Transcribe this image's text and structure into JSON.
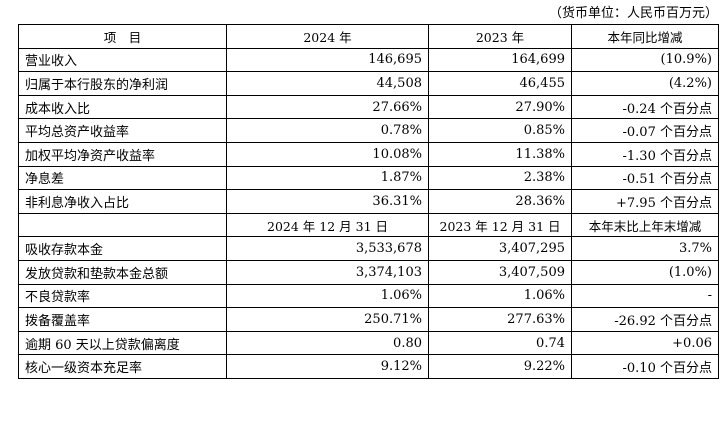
{
  "unit_note": "（货币单位：人民币百万元）",
  "header1": [
    "项　目",
    "2024 年",
    "2023 年",
    "本年同比增减"
  ],
  "rows1": [
    {
      "label": "营业收入",
      "v2024": "146,695",
      "v2023": "164,699",
      "change": "(10.9%)"
    },
    {
      "label": "归属于本行股东的净利润",
      "v2024": "44,508",
      "v2023": "46,455",
      "change": "(4.2%)"
    },
    {
      "label": "成本收入比",
      "v2024": "27.66%",
      "v2023": "27.90%",
      "change": "-0.24 个百分点"
    },
    {
      "label": "平均总资产收益率",
      "v2024": "0.78%",
      "v2023": "0.85%",
      "change": "-0.07 个百分点"
    },
    {
      "label": "加权平均净资产收益率",
      "v2024": "10.08%",
      "v2023": "11.38%",
      "change": "-1.30 个百分点"
    },
    {
      "label": "净息差",
      "v2024": "1.87%",
      "v2023": "2.38%",
      "change": "-0.51 个百分点"
    },
    {
      "label": "非利息净收入占比",
      "v2024": "36.31%",
      "v2023": "28.36%",
      "change": "+7.95 个百分点"
    }
  ],
  "header2": [
    "",
    "2024 年 12 月 31 日",
    "2023 年 12 月 31 日",
    "本年末比上年末增减"
  ],
  "rows2": [
    {
      "label": "吸收存款本金",
      "v2024": "3,533,678",
      "v2023": "3,407,295",
      "change": "3.7%"
    },
    {
      "label": "发放贷款和垫款本金总额",
      "v2024": "3,374,103",
      "v2023": "3,407,509",
      "change": "(1.0%)"
    },
    {
      "label": "不良贷款率",
      "v2024": "1.06%",
      "v2023": "1.06%",
      "change": "-"
    },
    {
      "label": "拨备覆盖率",
      "v2024": "250.71%",
      "v2023": "277.63%",
      "change": "-26.92 个百分点"
    },
    {
      "label": "逾期 60 天以上贷款偏离度",
      "v2024": "0.80",
      "v2023": "0.74",
      "change": "+0.06"
    },
    {
      "label": "核心一级资本充足率",
      "v2024": "9.12%",
      "v2023": "9.22%",
      "change": "-0.10 个百分点"
    }
  ]
}
